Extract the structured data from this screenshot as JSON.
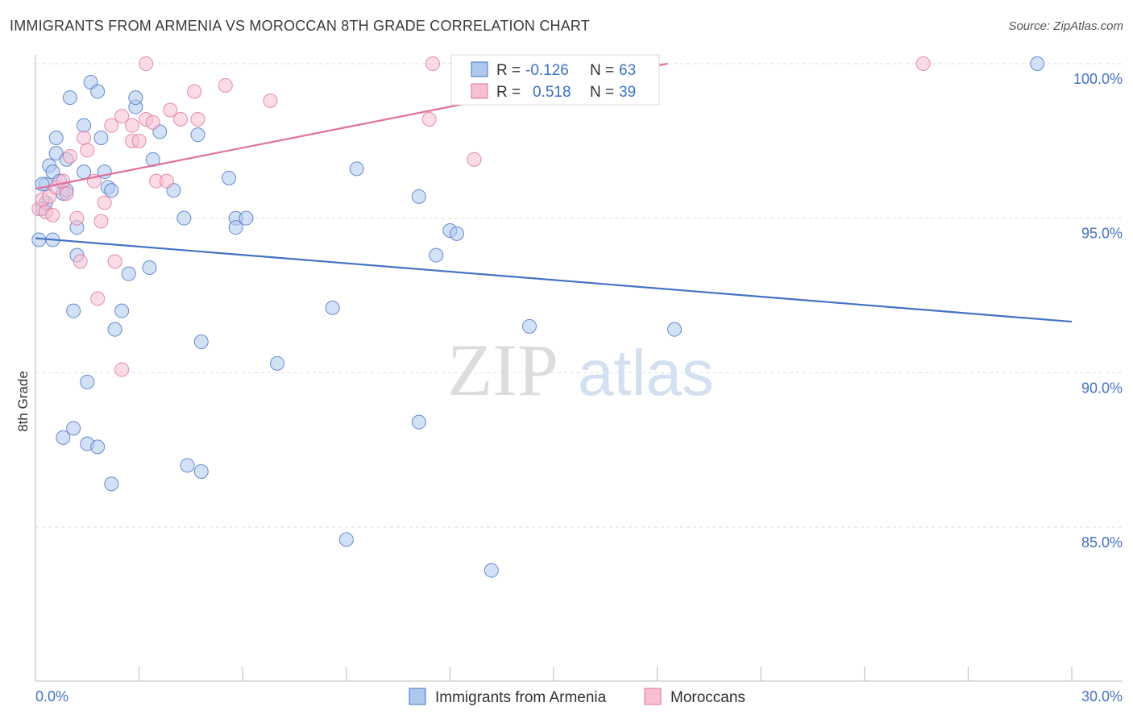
{
  "title": "IMMIGRANTS FROM ARMENIA VS MOROCCAN 8TH GRADE CORRELATION CHART",
  "source": "Source: ZipAtlas.com",
  "watermark": {
    "zip": "ZIP",
    "atlas": "atlas"
  },
  "legend_box": {
    "rows": [
      {
        "r_label": "R =",
        "r_value": "-0.126",
        "n_label": "N =",
        "n_value": "63"
      },
      {
        "r_label": "R =",
        "r_value": "0.518",
        "n_label": "N =",
        "n_value": "39"
      }
    ]
  },
  "chart_data": {
    "type": "scatter",
    "title": "IMMIGRANTS FROM ARMENIA VS MOROCCAN 8TH GRADE CORRELATION CHART",
    "xlabel": "",
    "ylabel": "8th Grade",
    "xlim": [
      0,
      30
    ],
    "ylim": [
      80.5,
      100.5
    ],
    "x_tick_labels": [
      {
        "value": 0,
        "label": "0.0%"
      },
      {
        "value": 30,
        "label": "30.0%"
      }
    ],
    "y_tick_labels": [
      {
        "value": 100,
        "label": "100.0%"
      },
      {
        "value": 95,
        "label": "95.0%"
      },
      {
        "value": 90,
        "label": "90.0%"
      },
      {
        "value": 85,
        "label": "85.0%"
      }
    ],
    "grid": "horizontal dashed",
    "legend_position": "bottom-center",
    "series": [
      {
        "name": "Immigrants from Armenia",
        "color": "#4472c4",
        "fill": "#aec8ee",
        "r": -0.126,
        "n": 63,
        "trend": {
          "x0": 0,
          "y0": 94.35,
          "x1": 30,
          "y1": 91.65
        },
        "points": [
          [
            0.1,
            94.3
          ],
          [
            0.5,
            94.3
          ],
          [
            0.2,
            95.3
          ],
          [
            0.3,
            96.1
          ],
          [
            0.4,
            96.7
          ],
          [
            0.5,
            96.5
          ],
          [
            0.6,
            97.1
          ],
          [
            0.6,
            97.6
          ],
          [
            0.7,
            96.2
          ],
          [
            0.8,
            95.8
          ],
          [
            0.9,
            96.9
          ],
          [
            0.9,
            95.9
          ],
          [
            1.0,
            98.9
          ],
          [
            1.1,
            92.0
          ],
          [
            1.2,
            93.8
          ],
          [
            1.2,
            94.7
          ],
          [
            1.4,
            98.0
          ],
          [
            1.4,
            96.5
          ],
          [
            1.5,
            89.7
          ],
          [
            1.6,
            99.4
          ],
          [
            1.8,
            99.1
          ],
          [
            1.9,
            97.6
          ],
          [
            2.0,
            96.5
          ],
          [
            2.1,
            96.0
          ],
          [
            2.2,
            95.9
          ],
          [
            2.3,
            91.4
          ],
          [
            2.5,
            92.0
          ],
          [
            2.7,
            93.2
          ],
          [
            2.9,
            98.6
          ],
          [
            2.9,
            98.9
          ],
          [
            3.3,
            93.4
          ],
          [
            3.4,
            96.9
          ],
          [
            3.6,
            97.8
          ],
          [
            4.0,
            95.9
          ],
          [
            4.3,
            95.0
          ],
          [
            4.7,
            97.7
          ],
          [
            4.8,
            91.0
          ],
          [
            5.6,
            96.3
          ],
          [
            5.8,
            95.0
          ],
          [
            5.8,
            94.7
          ],
          [
            6.1,
            95.0
          ],
          [
            7.0,
            90.3
          ],
          [
            8.6,
            92.1
          ],
          [
            9.3,
            96.6
          ],
          [
            11.1,
            88.4
          ],
          [
            11.1,
            95.7
          ],
          [
            11.6,
            93.8
          ],
          [
            12.0,
            94.6
          ],
          [
            12.2,
            94.5
          ],
          [
            14.3,
            91.5
          ],
          [
            18.5,
            91.4
          ],
          [
            29.0,
            100.0
          ],
          [
            0.8,
            87.9
          ],
          [
            1.1,
            88.2
          ],
          [
            1.5,
            87.7
          ],
          [
            1.8,
            87.6
          ],
          [
            2.2,
            86.4
          ],
          [
            4.4,
            87.0
          ],
          [
            4.8,
            86.8
          ],
          [
            9.0,
            84.6
          ],
          [
            13.2,
            83.6
          ],
          [
            0.3,
            95.5
          ],
          [
            0.2,
            96.1
          ]
        ]
      },
      {
        "name": "Moroccans",
        "color": "#e0709a",
        "fill": "#f7c0d1",
        "r": 0.518,
        "n": 39,
        "trend": {
          "x0": 0,
          "y0": 95.95,
          "x1": 18.3,
          "y1": 100.0
        },
        "points": [
          [
            0.1,
            95.3
          ],
          [
            0.2,
            95.6
          ],
          [
            0.3,
            95.2
          ],
          [
            0.4,
            95.7
          ],
          [
            0.5,
            95.1
          ],
          [
            0.6,
            96.0
          ],
          [
            0.8,
            96.2
          ],
          [
            0.9,
            95.8
          ],
          [
            1.0,
            97.0
          ],
          [
            1.2,
            95.0
          ],
          [
            1.3,
            93.6
          ],
          [
            1.4,
            97.6
          ],
          [
            1.5,
            97.2
          ],
          [
            1.7,
            96.2
          ],
          [
            1.8,
            92.4
          ],
          [
            1.9,
            94.9
          ],
          [
            2.0,
            95.5
          ],
          [
            2.2,
            98.0
          ],
          [
            2.3,
            93.6
          ],
          [
            2.5,
            90.1
          ],
          [
            2.5,
            98.3
          ],
          [
            2.8,
            98.0
          ],
          [
            2.8,
            97.5
          ],
          [
            3.0,
            97.5
          ],
          [
            3.2,
            98.2
          ],
          [
            3.2,
            100.0
          ],
          [
            3.4,
            98.1
          ],
          [
            3.5,
            96.2
          ],
          [
            3.8,
            96.2
          ],
          [
            3.9,
            98.5
          ],
          [
            4.2,
            98.2
          ],
          [
            4.6,
            99.1
          ],
          [
            4.7,
            98.2
          ],
          [
            5.5,
            99.3
          ],
          [
            6.8,
            98.8
          ],
          [
            11.4,
            98.2
          ],
          [
            11.5,
            100.0
          ],
          [
            12.7,
            96.9
          ],
          [
            25.7,
            100.0
          ]
        ]
      }
    ]
  }
}
